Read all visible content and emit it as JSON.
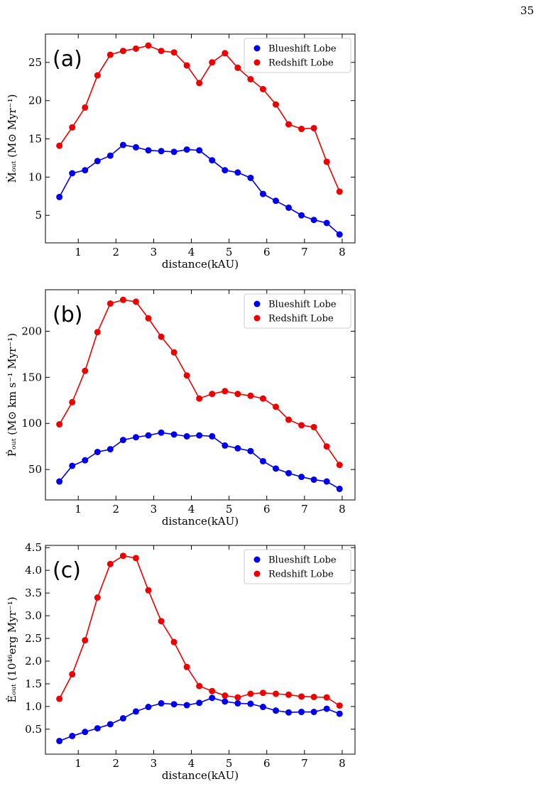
{
  "page_number": "35",
  "chart_data": [
    {
      "type": "line",
      "panel_label": "(a)",
      "x_label": "distance(kAU)",
      "y_label": "Ṁₒᵤₜ (M⊙ Myr⁻¹)",
      "x": [
        0.5,
        0.84,
        1.18,
        1.51,
        1.85,
        2.19,
        2.53,
        2.86,
        3.2,
        3.54,
        3.88,
        4.21,
        4.55,
        4.89,
        5.23,
        5.57,
        5.9,
        6.24,
        6.58,
        6.92,
        7.25,
        7.59,
        7.93
      ],
      "series": [
        {
          "name": "Blueshift Lobe",
          "color": "#0000ee",
          "values": [
            7.4,
            10.5,
            10.9,
            12.1,
            12.8,
            14.2,
            13.9,
            13.5,
            13.4,
            13.3,
            13.6,
            13.5,
            12.2,
            10.9,
            10.6,
            9.9,
            7.8,
            6.9,
            6.0,
            5.0,
            4.4,
            4.0,
            2.5
          ]
        },
        {
          "name": "Redshift Lobe",
          "color": "#ee0000",
          "values": [
            14.1,
            16.5,
            19.1,
            23.3,
            26.0,
            26.5,
            26.8,
            27.2,
            26.5,
            26.3,
            24.6,
            22.3,
            25.0,
            26.2,
            24.3,
            22.8,
            21.5,
            19.5,
            16.9,
            16.3,
            16.4,
            12.0,
            8.1
          ]
        }
      ],
      "xlim": [
        0.13,
        8.34
      ],
      "xticks": [
        1,
        2,
        3,
        4,
        5,
        6,
        7,
        8
      ],
      "ylim": [
        1.4,
        28.7
      ],
      "yticks": [
        5,
        10,
        15,
        20,
        25
      ],
      "legend": "upper right"
    },
    {
      "type": "line",
      "panel_label": "(b)",
      "x_label": "distance(kAU)",
      "y_label": "Ṗₒᵤₜ (M⊙ km s⁻¹ Myr⁻¹)",
      "x": [
        0.5,
        0.84,
        1.18,
        1.51,
        1.85,
        2.19,
        2.53,
        2.86,
        3.2,
        3.54,
        3.88,
        4.21,
        4.55,
        4.89,
        5.23,
        5.57,
        5.9,
        6.24,
        6.58,
        6.92,
        7.25,
        7.59,
        7.93
      ],
      "series": [
        {
          "name": "Blueshift Lobe",
          "color": "#0000ee",
          "values": [
            37,
            54,
            60,
            69,
            72,
            82,
            85,
            87,
            90,
            88,
            86,
            87,
            86,
            76,
            73,
            70,
            59,
            51,
            46,
            42,
            39,
            37,
            29
          ]
        },
        {
          "name": "Redshift Lobe",
          "color": "#ee0000",
          "values": [
            99,
            123,
            157,
            199,
            230,
            234,
            232,
            214,
            194,
            177,
            152,
            127,
            132,
            135,
            132,
            130,
            127,
            118,
            104,
            98,
            96,
            75,
            55
          ]
        }
      ],
      "xlim": [
        0.13,
        8.34
      ],
      "xticks": [
        1,
        2,
        3,
        4,
        5,
        6,
        7,
        8
      ],
      "ylim": [
        17,
        245
      ],
      "yticks": [
        50,
        100,
        150,
        200
      ],
      "legend": "upper right"
    },
    {
      "type": "line",
      "panel_label": "(c)",
      "x_label": "distance(kAU)",
      "y_label": "Ėₒᵤₜ (10⁴⁶erg Myr⁻¹)",
      "x": [
        0.5,
        0.84,
        1.18,
        1.51,
        1.85,
        2.19,
        2.53,
        2.86,
        3.2,
        3.54,
        3.88,
        4.21,
        4.55,
        4.89,
        5.23,
        5.57,
        5.9,
        6.24,
        6.58,
        6.92,
        7.25,
        7.59,
        7.93
      ],
      "series": [
        {
          "name": "Blueshift Lobe",
          "color": "#0000ee",
          "values": [
            0.24,
            0.35,
            0.44,
            0.52,
            0.61,
            0.74,
            0.89,
            0.99,
            1.07,
            1.05,
            1.03,
            1.08,
            1.19,
            1.11,
            1.07,
            1.06,
            0.99,
            0.91,
            0.87,
            0.88,
            0.88,
            0.95,
            0.84
          ]
        },
        {
          "name": "Redshift Lobe",
          "color": "#ee0000",
          "values": [
            1.17,
            1.71,
            2.46,
            3.4,
            4.14,
            4.32,
            4.27,
            3.56,
            2.88,
            2.42,
            1.87,
            1.45,
            1.34,
            1.24,
            1.2,
            1.28,
            1.3,
            1.28,
            1.26,
            1.22,
            1.21,
            1.2,
            1.02
          ]
        }
      ],
      "xlim": [
        0.13,
        8.34
      ],
      "xticks": [
        1,
        2,
        3,
        4,
        5,
        6,
        7,
        8
      ],
      "ylim": [
        -0.05,
        4.55
      ],
      "yticks": [
        0.5,
        {
          "value": 1,
          "label": "1.0"
        },
        1.5,
        {
          "value": 2,
          "label": "2.0"
        },
        2.5,
        {
          "value": 3,
          "label": "3.0"
        },
        3.5,
        {
          "value": 4,
          "label": "4.0"
        },
        4.5
      ],
      "legend": "upper right"
    }
  ]
}
